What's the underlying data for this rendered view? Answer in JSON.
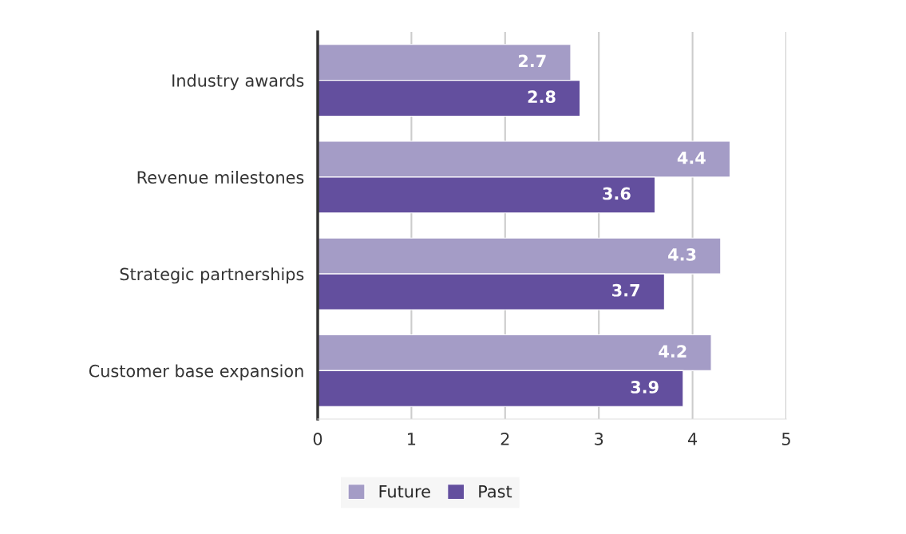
{
  "chart_data": {
    "type": "bar",
    "orientation": "horizontal",
    "categories": [
      "Industry awards",
      "Revenue milestones",
      "Strategic partnerships",
      "Customer base expansion"
    ],
    "series": [
      {
        "name": "Future",
        "color": "#a49cc6",
        "values": [
          2.7,
          4.4,
          4.3,
          4.2
        ]
      },
      {
        "name": "Past",
        "color": "#634f9e",
        "values": [
          2.8,
          3.6,
          3.7,
          3.9
        ]
      }
    ],
    "xlim": [
      0,
      5
    ],
    "xticks": [
      0,
      1,
      2,
      3,
      4,
      5
    ],
    "grid": "x",
    "legend": "bottom",
    "data_labels": true
  }
}
